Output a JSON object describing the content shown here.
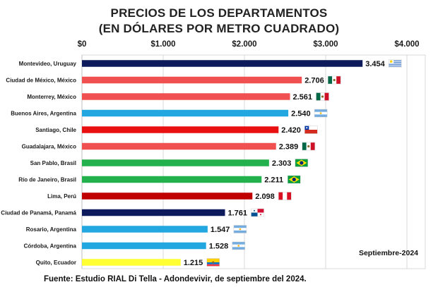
{
  "title_line1": "PRECIOS DE LOS DEPARTAMENTOS",
  "title_line2": "(EN DÓLARES POR METRO CUADRADO)",
  "source": "Fuente: Estudio RIAL Di Tella - Adondevivir, de septiembre del 2024.",
  "chart_data": {
    "type": "bar",
    "orientation": "horizontal",
    "title": "PRECIOS DE LOS DEPARTAMENTOS (EN DÓLARES POR METRO CUADRADO)",
    "xlabel": "",
    "ylabel": "",
    "xlim": [
      0,
      4000
    ],
    "grid": true,
    "axis_ticks": [
      {
        "value": 0,
        "label": "$0"
      },
      {
        "value": 1000,
        "label": "$1.000"
      },
      {
        "value": 2000,
        "label": "$2.000"
      },
      {
        "value": 3000,
        "label": "$3.000"
      },
      {
        "value": 4000,
        "label": "$4.000"
      }
    ],
    "annotation": "Septiembre-2024",
    "bars": [
      {
        "category": "Montevideo, Uruguay",
        "value": 3454,
        "label": "3.454",
        "color": "#0d1b5c",
        "flag": "uruguay-flag-icon"
      },
      {
        "category": "Ciudad de México, México",
        "value": 2706,
        "label": "2.706",
        "color": "#f05050",
        "flag": "mexico-flag-icon"
      },
      {
        "category": "Monterrey, México",
        "value": 2561,
        "label": "2.561",
        "color": "#f05050",
        "flag": "mexico-flag-icon"
      },
      {
        "category": "Buenos Aires, Argentina",
        "value": 2540,
        "label": "2.540",
        "color": "#22a7e0",
        "flag": "argentina-flag-icon"
      },
      {
        "category": "Santiago, Chile",
        "value": 2420,
        "label": "2.420",
        "color": "#e81010",
        "flag": "chile-flag-icon"
      },
      {
        "category": "Guadalajara, México",
        "value": 2389,
        "label": "2.389",
        "color": "#f05050",
        "flag": "mexico-flag-icon"
      },
      {
        "category": "San Pablo, Brasil",
        "value": 2303,
        "label": "2.303",
        "color": "#22b14c",
        "flag": "brazil-flag-icon"
      },
      {
        "category": "Río de Janeiro, Brasil",
        "value": 2211,
        "label": "2.211",
        "color": "#22b14c",
        "flag": "brazil-flag-icon"
      },
      {
        "category": "Lima, Perú",
        "value": 2098,
        "label": "2.098",
        "color": "#c00000",
        "flag": "peru-flag-icon"
      },
      {
        "category": "Ciudad de Panamá, Panamá",
        "value": 1761,
        "label": "1.761",
        "color": "#0d1b5c",
        "flag": "panama-flag-icon"
      },
      {
        "category": "Rosario, Argentina",
        "value": 1547,
        "label": "1.547",
        "color": "#22a7e0",
        "flag": "argentina-flag-icon"
      },
      {
        "category": "Córdoba, Argentina",
        "value": 1528,
        "label": "1.528",
        "color": "#22a7e0",
        "flag": "argentina-flag-icon"
      },
      {
        "category": "Quito, Ecuador",
        "value": 1215,
        "label": "1.215",
        "color": "#ffff33",
        "flag": "ecuador-flag-icon"
      }
    ]
  }
}
